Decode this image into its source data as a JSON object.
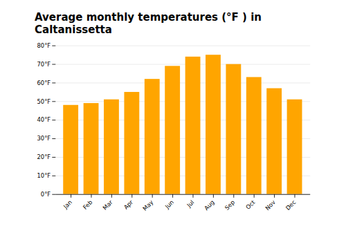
{
  "chart_data": {
    "type": "bar",
    "title": "Average monthly temperatures (°F ) in Caltanissetta",
    "categories": [
      "Jan",
      "Feb",
      "Mar",
      "Apr",
      "May",
      "Jun",
      "Jul",
      "Aug",
      "Sep",
      "Oct",
      "Nov",
      "Dec"
    ],
    "values": [
      48,
      49,
      51,
      55,
      62,
      69,
      74,
      75,
      70,
      63,
      57,
      51
    ],
    "color": "#FFA500",
    "ylim": [
      0,
      80
    ],
    "yticks": [
      {
        "value": 0,
        "label": "0°F"
      },
      {
        "value": 10,
        "label": "10°F"
      },
      {
        "value": 20,
        "label": "20°F"
      },
      {
        "value": 30,
        "label": "30°F"
      },
      {
        "value": 40,
        "label": "40°F"
      },
      {
        "value": 50,
        "label": "50°F"
      },
      {
        "value": 60,
        "label": "60°F"
      },
      {
        "value": 70,
        "label": "70°F"
      },
      {
        "value": 80,
        "label": "80°F"
      }
    ],
    "grid": true
  }
}
